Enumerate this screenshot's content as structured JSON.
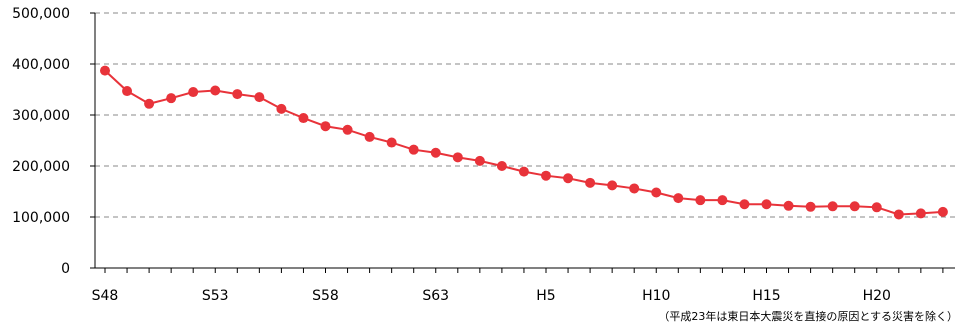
{
  "chart_data": {
    "type": "line",
    "title": "",
    "xlabel": "",
    "ylabel": "",
    "categories": [
      "S48",
      "S49",
      "S50",
      "S51",
      "S52",
      "S53",
      "S54",
      "S55",
      "S56",
      "S57",
      "S58",
      "S59",
      "S60",
      "S61",
      "S62",
      "S63",
      "H1",
      "H2",
      "H3",
      "H4",
      "H5",
      "H6",
      "H7",
      "H8",
      "H9",
      "H10",
      "H11",
      "H12",
      "H13",
      "H14",
      "H15",
      "H16",
      "H17",
      "H18",
      "H19",
      "H20",
      "H21",
      "H22",
      "H24"
    ],
    "x_tick_labels": [
      "S48",
      "S53",
      "S58",
      "S63",
      "H5",
      "H10",
      "H15",
      "H20"
    ],
    "y_tick_labels": [
      "0",
      "100,000",
      "200,000",
      "300,000",
      "400,000",
      "500,000"
    ],
    "ylim": [
      0,
      500000
    ],
    "grid": true,
    "legend": "none",
    "series": [
      {
        "color": "#e8333a",
        "values": [
          387000,
          347000,
          322000,
          333000,
          345000,
          348000,
          341000,
          335000,
          312000,
          294000,
          278000,
          271000,
          257000,
          246000,
          232000,
          226000,
          217000,
          210000,
          200000,
          189000,
          181000,
          176000,
          167000,
          162000,
          156000,
          148000,
          137000,
          133000,
          133000,
          125000,
          125000,
          122000,
          120000,
          121000,
          121000,
          119000,
          105000,
          107000,
          110000
        ]
      }
    ],
    "annotation": "（平成23年は東日本大震災を直接の原因とする災害を除く）"
  }
}
